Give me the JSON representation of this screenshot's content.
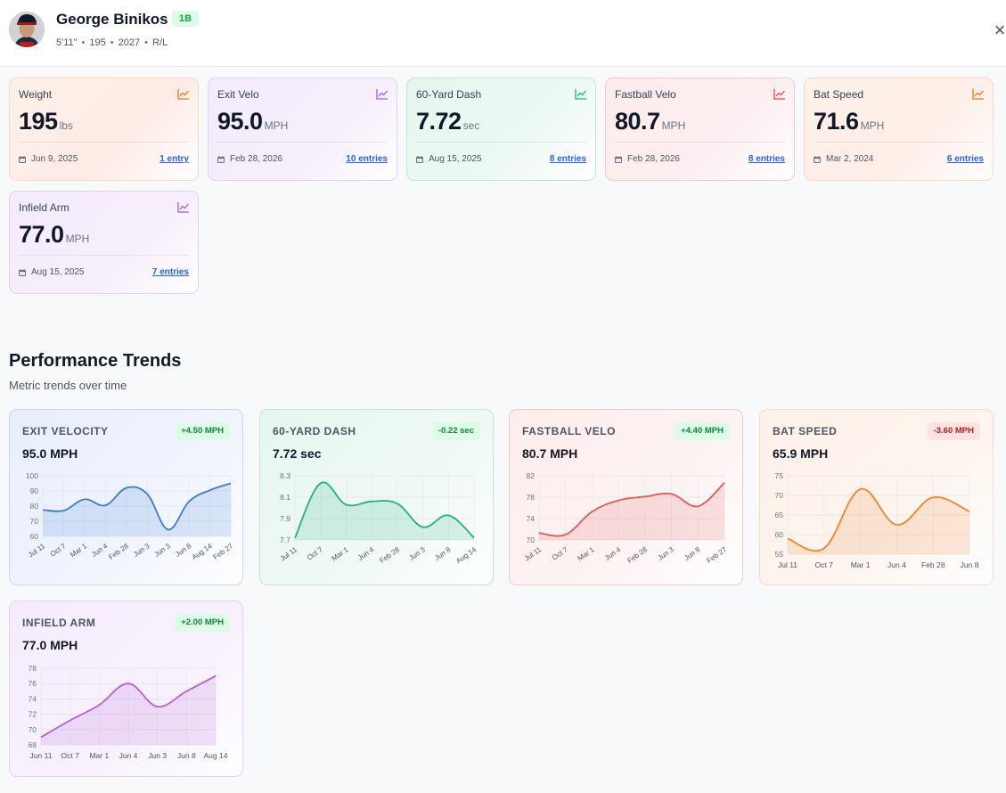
{
  "player": {
    "name": "George Binikos",
    "position": "1B",
    "height": "5'11\"",
    "weight": "195",
    "grad_year": "2027",
    "bats_throws": "R/L"
  },
  "header": {
    "close_glyph": "×"
  },
  "metrics": [
    {
      "label": "Weight",
      "value": "195",
      "unit": "lbs",
      "date": "Jun 9, 2025",
      "entries": "1 entry",
      "color": "#f97316"
    },
    {
      "label": "Exit Velo",
      "value": "95.0",
      "unit": "MPH",
      "date": "Feb 28, 2026",
      "entries": "10 entries",
      "color": "#a855f7"
    },
    {
      "label": "60-Yard Dash",
      "value": "7.72",
      "unit": "sec",
      "date": "Aug 15, 2025",
      "entries": "8 entries",
      "color": "#10b981"
    },
    {
      "label": "Fastball Velo",
      "value": "80.7",
      "unit": "MPH",
      "date": "Feb 28, 2026",
      "entries": "8 entries",
      "color": "#ef4444"
    },
    {
      "label": "Bat Speed",
      "value": "71.6",
      "unit": "MPH",
      "date": "Mar 2, 2024",
      "entries": "6 entries",
      "color": "#f97316"
    },
    {
      "label": "Infield Arm",
      "value": "77.0",
      "unit": "MPH",
      "date": "Aug 15, 2025",
      "entries": "7 entries",
      "color": "#a855f7"
    }
  ],
  "trends": {
    "title": "Performance Trends",
    "subtitle": "Metric trends over time"
  },
  "chart_data": [
    {
      "type": "area",
      "title": "EXIT VELOCITY",
      "current": "95.0 MPH",
      "change": "+4.50 MPH",
      "change_direction": "up",
      "color": "#3b7bd4",
      "ylim": [
        60,
        100
      ],
      "yticks": [
        60,
        70,
        80,
        90,
        100
      ],
      "categories": [
        "Jul 11",
        "Oct 7",
        "Mar 1",
        "Jun 4",
        "Feb 28",
        "Jun 3",
        "Jun 3",
        "Jun 8",
        "Aug 14",
        "Feb 27"
      ],
      "values": [
        77.5,
        77,
        84.5,
        80.5,
        92,
        88,
        64.5,
        83,
        90.5,
        95
      ],
      "grid": true,
      "rotated_labels": true
    },
    {
      "type": "area",
      "title": "60-YARD DASH",
      "current": "7.72 sec",
      "change": "-0.22 sec",
      "change_direction": "up",
      "color": "#22b07d",
      "ylim": [
        7.7,
        8.3
      ],
      "yticks": [
        7.7,
        7.9,
        8.1,
        8.3
      ],
      "categories": [
        "Jul 11",
        "Oct 7",
        "Mar 1",
        "Jun 4",
        "Feb 28",
        "Jun 3",
        "Jun 8",
        "Aug 14"
      ],
      "values": [
        7.72,
        8.23,
        8.03,
        8.06,
        8.04,
        7.82,
        7.93,
        7.72
      ],
      "grid": true,
      "rotated_labels": true
    },
    {
      "type": "area",
      "title": "FASTBALL VELO",
      "current": "80.7 MPH",
      "change": "+4.40 MPH",
      "change_direction": "up",
      "color": "#e05a5a",
      "ylim": [
        70,
        82
      ],
      "yticks": [
        70,
        74,
        78,
        82
      ],
      "categories": [
        "Jul 11",
        "Oct 7",
        "Mar 1",
        "Jun 4",
        "Feb 28",
        "Jun 3",
        "Jun 8",
        "Feb 27"
      ],
      "values": [
        71.3,
        71,
        75.3,
        77.4,
        78.1,
        78.6,
        76.3,
        80.7
      ],
      "grid": true,
      "rotated_labels": true
    },
    {
      "type": "area",
      "title": "BAT SPEED",
      "current": "65.9 MPH",
      "change": "-3.60 MPH",
      "change_direction": "down",
      "color": "#f0842c",
      "ylim": [
        55,
        75
      ],
      "yticks": [
        55,
        60,
        65,
        70,
        75
      ],
      "categories": [
        "Jul 11",
        "Oct 7",
        "Mar 1",
        "Jun 4",
        "Feb 28",
        "Jun 8"
      ],
      "values": [
        59,
        56.5,
        71.6,
        62.5,
        69.5,
        65.9
      ],
      "grid": true,
      "rotated_labels": false
    },
    {
      "type": "area",
      "title": "INFIELD ARM",
      "current": "77.0 MPH",
      "change": "+2.00 MPH",
      "change_direction": "up",
      "color": "#b45fd6",
      "ylim": [
        68,
        78
      ],
      "yticks": [
        68,
        70,
        72,
        74,
        76,
        78
      ],
      "categories": [
        "Jun 11",
        "Oct 7",
        "Mar 1",
        "Jun 4",
        "Jun 3",
        "Jun 8",
        "Aug 14"
      ],
      "values": [
        69,
        71.2,
        73.2,
        76,
        73,
        75,
        77
      ],
      "grid": true,
      "rotated_labels": false
    }
  ]
}
